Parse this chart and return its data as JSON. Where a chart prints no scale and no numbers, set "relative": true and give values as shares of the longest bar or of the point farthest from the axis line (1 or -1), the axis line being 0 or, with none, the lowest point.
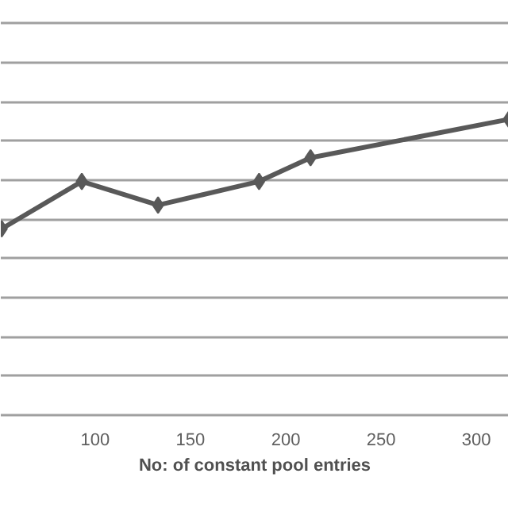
{
  "chart_data": {
    "type": "line",
    "xlabel": "No: of constant pool entries",
    "relative": true,
    "series": [
      {
        "color": "#595959",
        "x": [
          51,
          93,
          133,
          186,
          213,
          317
        ],
        "values": [
          0.63,
          0.79,
          0.71,
          0.79,
          0.87,
          1.0
        ]
      }
    ],
    "xlim": [
      50.5,
      317
    ],
    "xticks": [
      100,
      150,
      200,
      250,
      300
    ],
    "grid": "y",
    "marker": "diamond",
    "line_style": "solid"
  }
}
